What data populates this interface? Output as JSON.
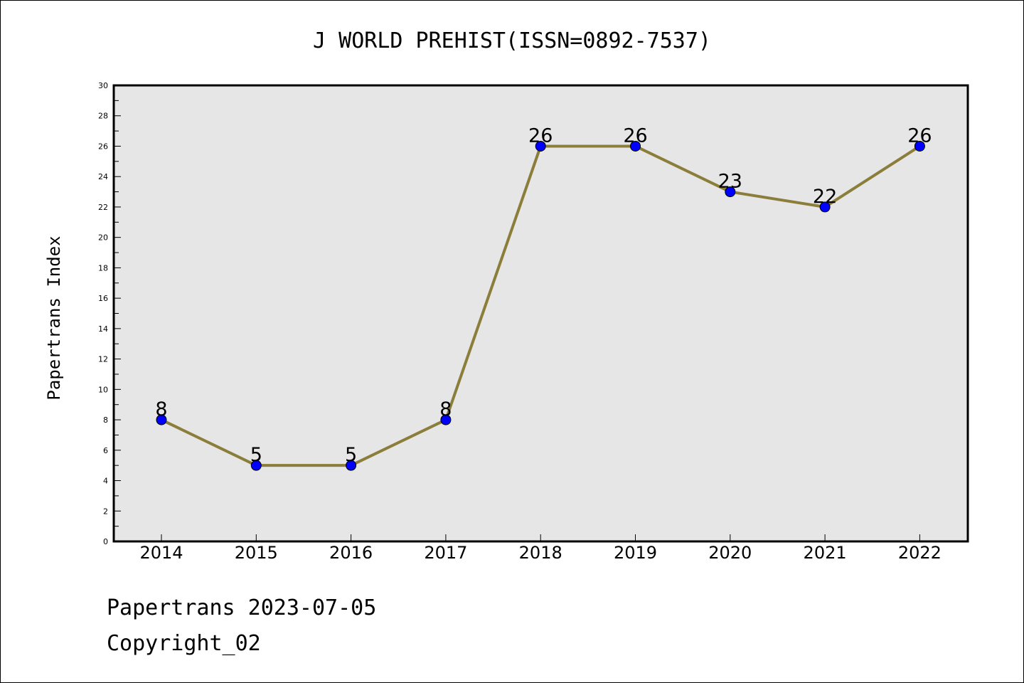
{
  "chart_data": {
    "type": "line",
    "title": "J WORLD PREHIST(ISSN=0892-7537)",
    "ylabel": "Papertrans Index",
    "xlabel": "",
    "categories": [
      "2014",
      "2015",
      "2016",
      "2017",
      "2018",
      "2019",
      "2020",
      "2021",
      "2022"
    ],
    "series": [
      {
        "values": [
          8,
          5,
          5,
          8,
          26,
          26,
          23,
          22,
          26
        ]
      }
    ],
    "ylim": [
      0,
      30
    ],
    "yticks": [
      0,
      2,
      4,
      6,
      8,
      10,
      12,
      14,
      16,
      18,
      20,
      22,
      24,
      26,
      28,
      30
    ],
    "data_labels": true,
    "grid": false,
    "legend": "none",
    "colors": {
      "plot_background": "#e6e6e6",
      "line": "#8b7d3a",
      "marker": "#0000ff"
    }
  },
  "footer": {
    "line1": "Papertrans 2023-07-05",
    "line2": "Copyright_02"
  }
}
